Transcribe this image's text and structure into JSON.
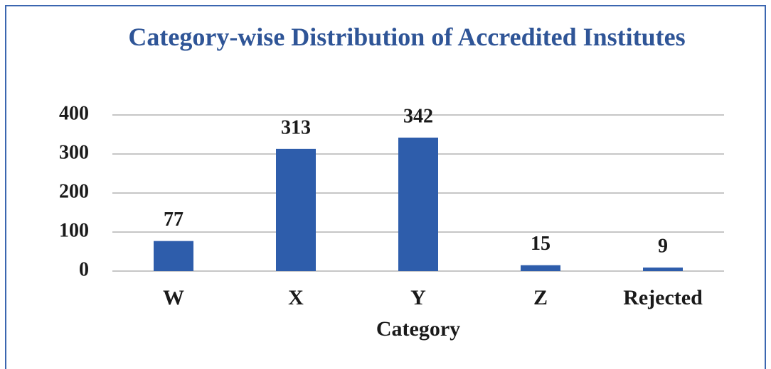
{
  "chart_data": {
    "type": "bar",
    "title": "Category-wise Distribution of Accredited Institutes",
    "x_label": "Category",
    "categories": [
      "W",
      "X",
      "Y",
      "Z",
      "Rejected"
    ],
    "values": [
      77,
      313,
      342,
      15,
      9
    ],
    "color": "#2e5dab",
    "ylim": [
      0,
      400
    ],
    "yticks": [
      0,
      100,
      200,
      300,
      400
    ],
    "grid": true
  }
}
